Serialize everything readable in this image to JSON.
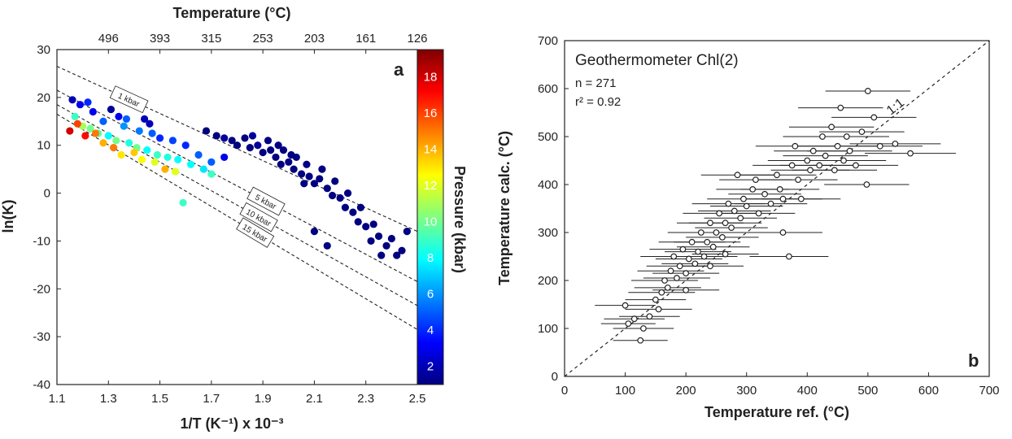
{
  "chart_data": [
    {
      "id": "a",
      "type": "scatter",
      "panel_label": "a",
      "xlabel": "1/T (K⁻¹) x 10⁻³",
      "ylabel": "ln(K)",
      "top_axis_label": "Temperature (°C)",
      "xlim": [
        1.1,
        2.5
      ],
      "ylim": [
        -40,
        30
      ],
      "x_ticks": [
        "1.1",
        "1.3",
        "1.5",
        "1.7",
        "1.9",
        "2.1",
        "2.3",
        "2.5"
      ],
      "y_ticks": [
        "30",
        "20",
        "10",
        "0",
        "-10",
        "-20",
        "-30",
        "-40"
      ],
      "top_ticks": [
        {
          "label": "496",
          "x": 1.3
        },
        {
          "label": "393",
          "x": 1.5
        },
        {
          "label": "315",
          "x": 1.7
        },
        {
          "label": "253",
          "x": 1.9
        },
        {
          "label": "203",
          "x": 2.1
        },
        {
          "label": "161",
          "x": 2.3
        },
        {
          "label": "126",
          "x": 2.5
        }
      ],
      "colorbar": {
        "label": "Pressure (kbar)",
        "range": [
          1,
          19.5
        ],
        "ticks": [
          "2",
          "4",
          "6",
          "8",
          "10",
          "12",
          "14",
          "16",
          "18"
        ]
      },
      "isobars": [
        {
          "label": "1 kbar",
          "x1": 1.1,
          "y1": 26.5,
          "x2": 2.5,
          "y2": -8
        },
        {
          "label": "5 kbar",
          "x1": 1.1,
          "y1": 21.5,
          "x2": 2.5,
          "y2": -18.5
        },
        {
          "label": "10 kbar",
          "x1": 1.1,
          "y1": 18.5,
          "x2": 2.5,
          "y2": -23.5
        },
        {
          "label": "15 kbar",
          "x1": 1.1,
          "y1": 16.5,
          "x2": 2.5,
          "y2": -28.5
        }
      ],
      "points": [
        {
          "x": 1.16,
          "y": 19.5,
          "p": 2
        },
        {
          "x": 1.19,
          "y": 18.5,
          "p": 3
        },
        {
          "x": 1.22,
          "y": 19,
          "p": 4
        },
        {
          "x": 1.24,
          "y": 17,
          "p": 3
        },
        {
          "x": 1.31,
          "y": 17.5,
          "p": 1.5
        },
        {
          "x": 1.34,
          "y": 16,
          "p": 3
        },
        {
          "x": 1.37,
          "y": 15.5,
          "p": 5
        },
        {
          "x": 1.44,
          "y": 15.5,
          "p": 2
        },
        {
          "x": 1.46,
          "y": 14.5,
          "p": 2
        },
        {
          "x": 1.28,
          "y": 15,
          "p": 5
        },
        {
          "x": 1.36,
          "y": 14,
          "p": 6
        },
        {
          "x": 1.42,
          "y": 13,
          "p": 5.5
        },
        {
          "x": 1.47,
          "y": 12.5,
          "p": 5
        },
        {
          "x": 1.5,
          "y": 11.5,
          "p": 4
        },
        {
          "x": 1.55,
          "y": 11,
          "p": 4.5
        },
        {
          "x": 1.6,
          "y": 10,
          "p": 4
        },
        {
          "x": 1.65,
          "y": 8,
          "p": 5
        },
        {
          "x": 1.7,
          "y": 6.5,
          "p": 5
        },
        {
          "x": 1.75,
          "y": 7.5,
          "p": 3
        },
        {
          "x": 1.17,
          "y": 16,
          "p": 9
        },
        {
          "x": 1.2,
          "y": 14,
          "p": 11
        },
        {
          "x": 1.23,
          "y": 13.5,
          "p": 10
        },
        {
          "x": 1.26,
          "y": 12.5,
          "p": 9.5
        },
        {
          "x": 1.3,
          "y": 12,
          "p": 8
        },
        {
          "x": 1.33,
          "y": 11,
          "p": 10
        },
        {
          "x": 1.38,
          "y": 10.5,
          "p": 8.5
        },
        {
          "x": 1.41,
          "y": 9.5,
          "p": 10
        },
        {
          "x": 1.45,
          "y": 9,
          "p": 8
        },
        {
          "x": 1.49,
          "y": 8,
          "p": 9
        },
        {
          "x": 1.53,
          "y": 7.5,
          "p": 8.5
        },
        {
          "x": 1.57,
          "y": 7,
          "p": 8
        },
        {
          "x": 1.62,
          "y": 6,
          "p": 8
        },
        {
          "x": 1.67,
          "y": 5,
          "p": 7.5
        },
        {
          "x": 1.7,
          "y": 4,
          "p": 9
        },
        {
          "x": 1.15,
          "y": 13,
          "p": 18
        },
        {
          "x": 1.18,
          "y": 14.5,
          "p": 16
        },
        {
          "x": 1.21,
          "y": 12,
          "p": 17
        },
        {
          "x": 1.25,
          "y": 12.5,
          "p": 15
        },
        {
          "x": 1.28,
          "y": 10.5,
          "p": 14
        },
        {
          "x": 1.32,
          "y": 9.5,
          "p": 15
        },
        {
          "x": 1.35,
          "y": 8,
          "p": 13
        },
        {
          "x": 1.4,
          "y": 8.5,
          "p": 13.5
        },
        {
          "x": 1.43,
          "y": 7,
          "p": 12.5
        },
        {
          "x": 1.48,
          "y": 6.5,
          "p": 12
        },
        {
          "x": 1.52,
          "y": 5,
          "p": 14
        },
        {
          "x": 1.56,
          "y": 4.5,
          "p": 12
        },
        {
          "x": 1.59,
          "y": -2,
          "p": 9
        },
        {
          "x": 1.68,
          "y": 13,
          "p": 1
        },
        {
          "x": 1.72,
          "y": 12,
          "p": 1
        },
        {
          "x": 1.75,
          "y": 11.5,
          "p": 1.5
        },
        {
          "x": 1.78,
          "y": 11,
          "p": 1
        },
        {
          "x": 1.8,
          "y": 10,
          "p": 1
        },
        {
          "x": 1.83,
          "y": 11.5,
          "p": 1
        },
        {
          "x": 1.85,
          "y": 9.5,
          "p": 1
        },
        {
          "x": 1.88,
          "y": 10,
          "p": 1.5
        },
        {
          "x": 1.9,
          "y": 8.5,
          "p": 1
        },
        {
          "x": 1.93,
          "y": 9,
          "p": 1
        },
        {
          "x": 1.95,
          "y": 7.5,
          "p": 1
        },
        {
          "x": 1.97,
          "y": 6,
          "p": 1
        },
        {
          "x": 2.0,
          "y": 6.5,
          "p": 1
        },
        {
          "x": 2.02,
          "y": 5,
          "p": 1
        },
        {
          "x": 2.05,
          "y": 4,
          "p": 1
        },
        {
          "x": 2.08,
          "y": 3.5,
          "p": 1
        },
        {
          "x": 2.1,
          "y": 2,
          "p": 1
        },
        {
          "x": 2.12,
          "y": 3,
          "p": 1
        },
        {
          "x": 2.15,
          "y": 1,
          "p": 1
        },
        {
          "x": 2.17,
          "y": -0.5,
          "p": 1
        },
        {
          "x": 2.2,
          "y": -1,
          "p": 1
        },
        {
          "x": 2.22,
          "y": -3,
          "p": 1
        },
        {
          "x": 2.25,
          "y": -4,
          "p": 1
        },
        {
          "x": 2.27,
          "y": -6,
          "p": 1
        },
        {
          "x": 2.3,
          "y": -7,
          "p": 1
        },
        {
          "x": 2.33,
          "y": -6.5,
          "p": 1
        },
        {
          "x": 2.35,
          "y": -9,
          "p": 1
        },
        {
          "x": 2.38,
          "y": -11,
          "p": 1
        },
        {
          "x": 2.4,
          "y": -9.5,
          "p": 1
        },
        {
          "x": 2.42,
          "y": -13,
          "p": 1
        },
        {
          "x": 2.36,
          "y": -13,
          "p": 1
        },
        {
          "x": 2.44,
          "y": -12,
          "p": 1
        },
        {
          "x": 1.98,
          "y": 9,
          "p": 1
        },
        {
          "x": 2.03,
          "y": 7.5,
          "p": 1
        },
        {
          "x": 2.07,
          "y": 6,
          "p": 1
        },
        {
          "x": 2.13,
          "y": 5,
          "p": 1
        },
        {
          "x": 2.18,
          "y": 2.5,
          "p": 1
        },
        {
          "x": 2.23,
          "y": 0,
          "p": 1
        },
        {
          "x": 2.1,
          "y": -8,
          "p": 1
        },
        {
          "x": 2.15,
          "y": -11,
          "p": 1
        },
        {
          "x": 2.28,
          "y": -3,
          "p": 1
        },
        {
          "x": 2.32,
          "y": -10,
          "p": 1
        },
        {
          "x": 2.46,
          "y": -8,
          "p": 1
        },
        {
          "x": 1.86,
          "y": 12,
          "p": 1.5
        },
        {
          "x": 1.92,
          "y": 11,
          "p": 1
        },
        {
          "x": 1.96,
          "y": 10,
          "p": 1
        },
        {
          "x": 2.01,
          "y": 8,
          "p": 1
        },
        {
          "x": 2.06,
          "y": 2,
          "p": 1
        }
      ]
    },
    {
      "id": "b",
      "type": "scatter",
      "panel_label": "b",
      "title": "Geothermometer Chl(2)",
      "stats": [
        "n = 271",
        "r² = 0.92"
      ],
      "xlabel": "Temperature ref. (°C)",
      "ylabel": "Temperature calc. (°C)",
      "xlim": [
        0,
        700
      ],
      "ylim": [
        0,
        700
      ],
      "x_ticks": [
        "0",
        "100",
        "200",
        "300",
        "400",
        "500",
        "600",
        "700"
      ],
      "y_ticks": [
        "0",
        "100",
        "200",
        "300",
        "400",
        "500",
        "600",
        "700"
      ],
      "reference_line": "1:1",
      "points": [
        {
          "x": 100,
          "y": 148,
          "err": 50
        },
        {
          "x": 105,
          "y": 110,
          "err": 45
        },
        {
          "x": 115,
          "y": 120,
          "err": 50
        },
        {
          "x": 125,
          "y": 75,
          "err": 45
        },
        {
          "x": 130,
          "y": 100,
          "err": 50
        },
        {
          "x": 140,
          "y": 125,
          "err": 50
        },
        {
          "x": 150,
          "y": 160,
          "err": 50
        },
        {
          "x": 155,
          "y": 140,
          "err": 55
        },
        {
          "x": 160,
          "y": 175,
          "err": 55
        },
        {
          "x": 165,
          "y": 200,
          "err": 55
        },
        {
          "x": 170,
          "y": 185,
          "err": 55
        },
        {
          "x": 175,
          "y": 220,
          "err": 55
        },
        {
          "x": 180,
          "y": 250,
          "err": 55
        },
        {
          "x": 185,
          "y": 205,
          "err": 55
        },
        {
          "x": 190,
          "y": 230,
          "err": 55
        },
        {
          "x": 195,
          "y": 265,
          "err": 55
        },
        {
          "x": 200,
          "y": 215,
          "err": 55
        },
        {
          "x": 205,
          "y": 245,
          "err": 55
        },
        {
          "x": 210,
          "y": 280,
          "err": 55
        },
        {
          "x": 215,
          "y": 235,
          "err": 55
        },
        {
          "x": 220,
          "y": 260,
          "err": 55
        },
        {
          "x": 225,
          "y": 300,
          "err": 55
        },
        {
          "x": 230,
          "y": 250,
          "err": 55
        },
        {
          "x": 235,
          "y": 280,
          "err": 55
        },
        {
          "x": 240,
          "y": 320,
          "err": 55
        },
        {
          "x": 245,
          "y": 270,
          "err": 60
        },
        {
          "x": 250,
          "y": 300,
          "err": 60
        },
        {
          "x": 255,
          "y": 340,
          "err": 60
        },
        {
          "x": 260,
          "y": 290,
          "err": 60
        },
        {
          "x": 265,
          "y": 320,
          "err": 60
        },
        {
          "x": 270,
          "y": 360,
          "err": 60
        },
        {
          "x": 275,
          "y": 310,
          "err": 60
        },
        {
          "x": 280,
          "y": 345,
          "err": 60
        },
        {
          "x": 285,
          "y": 420,
          "err": 60
        },
        {
          "x": 290,
          "y": 330,
          "err": 60
        },
        {
          "x": 295,
          "y": 370,
          "err": 60
        },
        {
          "x": 300,
          "y": 355,
          "err": 60
        },
        {
          "x": 310,
          "y": 390,
          "err": 60
        },
        {
          "x": 315,
          "y": 410,
          "err": 60
        },
        {
          "x": 320,
          "y": 340,
          "err": 60
        },
        {
          "x": 330,
          "y": 380,
          "err": 60
        },
        {
          "x": 340,
          "y": 360,
          "err": 60
        },
        {
          "x": 350,
          "y": 420,
          "err": 65
        },
        {
          "x": 355,
          "y": 390,
          "err": 65
        },
        {
          "x": 360,
          "y": 370,
          "err": 65
        },
        {
          "x": 370,
          "y": 250,
          "err": 65
        },
        {
          "x": 375,
          "y": 440,
          "err": 65
        },
        {
          "x": 380,
          "y": 480,
          "err": 65
        },
        {
          "x": 385,
          "y": 410,
          "err": 65
        },
        {
          "x": 390,
          "y": 370,
          "err": 65
        },
        {
          "x": 400,
          "y": 450,
          "err": 65
        },
        {
          "x": 405,
          "y": 430,
          "err": 65
        },
        {
          "x": 410,
          "y": 470,
          "err": 65
        },
        {
          "x": 420,
          "y": 440,
          "err": 65
        },
        {
          "x": 425,
          "y": 500,
          "err": 65
        },
        {
          "x": 430,
          "y": 460,
          "err": 70
        },
        {
          "x": 440,
          "y": 520,
          "err": 70
        },
        {
          "x": 445,
          "y": 430,
          "err": 70
        },
        {
          "x": 450,
          "y": 480,
          "err": 70
        },
        {
          "x": 455,
          "y": 560,
          "err": 70
        },
        {
          "x": 460,
          "y": 450,
          "err": 70
        },
        {
          "x": 465,
          "y": 500,
          "err": 70
        },
        {
          "x": 470,
          "y": 470,
          "err": 70
        },
        {
          "x": 480,
          "y": 440,
          "err": 70
        },
        {
          "x": 490,
          "y": 510,
          "err": 70
        },
        {
          "x": 500,
          "y": 595,
          "err": 70
        },
        {
          "x": 510,
          "y": 540,
          "err": 70
        },
        {
          "x": 520,
          "y": 480,
          "err": 70
        },
        {
          "x": 545,
          "y": 485,
          "err": 75
        },
        {
          "x": 570,
          "y": 465,
          "err": 75
        },
        {
          "x": 498,
          "y": 400,
          "err": 70
        },
        {
          "x": 360,
          "y": 300,
          "err": 65
        },
        {
          "x": 200,
          "y": 180,
          "err": 55
        },
        {
          "x": 240,
          "y": 230,
          "err": 55
        },
        {
          "x": 265,
          "y": 255,
          "err": 55
        }
      ]
    }
  ]
}
